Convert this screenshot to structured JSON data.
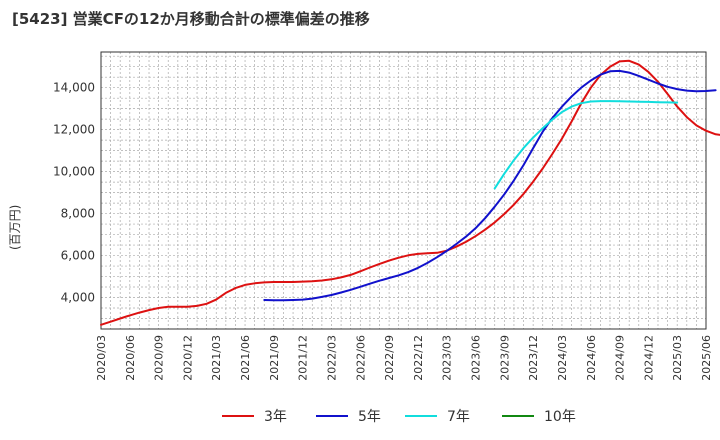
{
  "title": "[5423]  営業CFの12か月移動合計の標準偏差の推移",
  "chart_data": {
    "type": "line",
    "title": "[5423]  営業CFの12か月移動合計の標準偏差の推移",
    "xlabel": "",
    "ylabel": "(百万円)",
    "ylim": [
      2500,
      15700
    ],
    "yticks": [
      4000,
      6000,
      8000,
      10000,
      12000,
      14000
    ],
    "ytick_labels": [
      "4,000",
      "6,000",
      "8,000",
      "10,000",
      "12,000",
      "14,000"
    ],
    "xlim": [
      "2020-03",
      "2025-06"
    ],
    "xtick_labels": [
      "2020/03",
      "2020/06",
      "2020/09",
      "2020/12",
      "2021/03",
      "2021/06",
      "2021/09",
      "2021/12",
      "2022/03",
      "2022/06",
      "2022/09",
      "2022/12",
      "2023/03",
      "2023/06",
      "2023/09",
      "2023/12",
      "2024/03",
      "2024/06",
      "2024/09",
      "2024/12",
      "2025/03",
      "2025/06"
    ],
    "grid": true,
    "legend_position": "bottom",
    "series": [
      {
        "name": "3年",
        "color": "#dd1111",
        "start": "2020-03",
        "values": [
          2700,
          2850,
          3000,
          3150,
          3280,
          3400,
          3500,
          3560,
          3560,
          3560,
          3600,
          3700,
          3900,
          4220,
          4450,
          4600,
          4680,
          4720,
          4740,
          4740,
          4740,
          4760,
          4780,
          4810,
          4870,
          4960,
          5080,
          5250,
          5430,
          5600,
          5760,
          5900,
          6010,
          6080,
          6110,
          6130,
          6230,
          6420,
          6650,
          6920,
          7230,
          7580,
          7980,
          8430,
          8940,
          9520,
          10150,
          10840,
          11580,
          12390,
          13250,
          14000,
          14600,
          15000,
          15250,
          15280,
          15100,
          14750,
          14280,
          13700,
          13100,
          12600,
          12200,
          11950,
          11780,
          11720,
          11740,
          11850,
          12000,
          12200
        ]
      },
      {
        "name": "5年",
        "color": "#1111cc",
        "start": "2021-08",
        "values": [
          3880,
          3870,
          3870,
          3880,
          3900,
          3950,
          4030,
          4120,
          4240,
          4370,
          4510,
          4660,
          4800,
          4930,
          5060,
          5210,
          5410,
          5650,
          5920,
          6220,
          6550,
          6900,
          7300,
          7780,
          8330,
          8920,
          9580,
          10310,
          11110,
          11900,
          12550,
          13100,
          13580,
          14000,
          14340,
          14620,
          14780,
          14800,
          14720,
          14560,
          14380,
          14200,
          14040,
          13930,
          13860,
          13830,
          13840,
          13880
        ]
      },
      {
        "name": "7年",
        "color": "#11dddd",
        "start": "2023-08",
        "values": [
          9200,
          9900,
          10550,
          11120,
          11620,
          12070,
          12480,
          12840,
          13100,
          13260,
          13340,
          13360,
          13360,
          13350,
          13340,
          13330,
          13320,
          13310,
          13300,
          13290
        ]
      },
      {
        "name": "10年",
        "color": "#118811",
        "start": "2025-03",
        "values": []
      }
    ]
  }
}
